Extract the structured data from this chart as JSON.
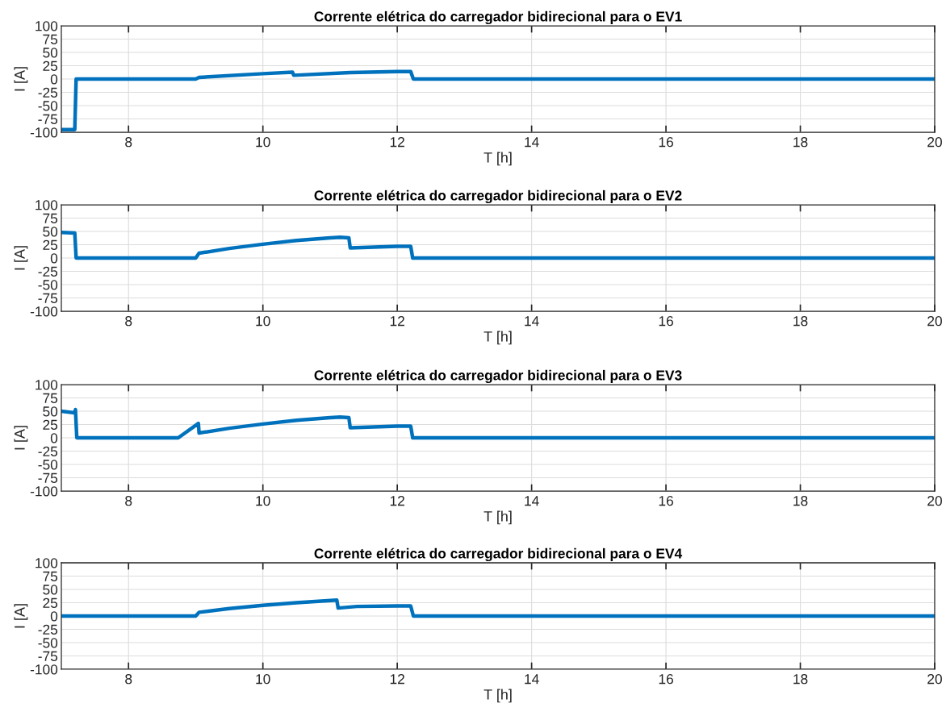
{
  "chart_data": [
    {
      "type": "line",
      "title": "Corrente elétrica do carregador bidirecional para o EV1",
      "xlabel": "T [h]",
      "ylabel": "I [A]",
      "xlim": [
        7,
        20
      ],
      "ylim": [
        -100,
        100
      ],
      "xticks": [
        8,
        10,
        12,
        14,
        16,
        18,
        20
      ],
      "yticks": [
        -100,
        -75,
        -50,
        -25,
        0,
        25,
        50,
        75,
        100
      ],
      "grid": true,
      "line_style": "solid",
      "marker": "none",
      "series": [
        {
          "color": "#0072bd",
          "x": [
            7,
            7.2,
            7.22,
            9.0,
            9.05,
            10.0,
            10.44,
            10.46,
            11.3,
            12.0,
            12.2,
            12.24,
            20
          ],
          "values": [
            -95,
            -95,
            0,
            0,
            3,
            10,
            13,
            7,
            12,
            14,
            14,
            0,
            0
          ]
        }
      ]
    },
    {
      "type": "line",
      "title": "Corrente elétrica do carregador bidirecional para o EV2",
      "xlabel": "T [h]",
      "ylabel": "I [A]",
      "xlim": [
        7,
        20
      ],
      "ylim": [
        -100,
        100
      ],
      "xticks": [
        8,
        10,
        12,
        14,
        16,
        18,
        20
      ],
      "yticks": [
        -100,
        -75,
        -50,
        -25,
        0,
        25,
        50,
        75,
        100
      ],
      "grid": true,
      "line_style": "solid",
      "marker": "none",
      "series": [
        {
          "color": "#0072bd",
          "x": [
            7,
            7.2,
            7.22,
            9.0,
            9.05,
            9.5,
            10.0,
            10.5,
            11.0,
            11.15,
            11.28,
            11.3,
            12.0,
            12.2,
            12.23,
            20
          ],
          "values": [
            48,
            47,
            0,
            0,
            9,
            18,
            26,
            33,
            38,
            39,
            38,
            19,
            22,
            22,
            0,
            0
          ]
        }
      ]
    },
    {
      "type": "line",
      "title": "Corrente elétrica do carregador bidirecional para o EV3",
      "xlabel": "T [h]",
      "ylabel": "I [A]",
      "xlim": [
        7,
        20
      ],
      "ylim": [
        -100,
        100
      ],
      "xticks": [
        8,
        10,
        12,
        14,
        16,
        18,
        20
      ],
      "yticks": [
        -100,
        -75,
        -50,
        -25,
        0,
        25,
        50,
        75,
        100
      ],
      "grid": true,
      "line_style": "solid",
      "marker": "none",
      "series": [
        {
          "color": "#0072bd",
          "x": [
            7,
            7.2,
            7.21,
            7.23,
            8.74,
            9.04,
            9.05,
            9.5,
            10.0,
            10.5,
            11.0,
            11.15,
            11.28,
            11.3,
            12.0,
            12.2,
            12.23,
            20
          ],
          "values": [
            50,
            47,
            53,
            0,
            0,
            27,
            9,
            18,
            26,
            33,
            38,
            39,
            38,
            19,
            22,
            22,
            0,
            0
          ]
        }
      ]
    },
    {
      "type": "line",
      "title": "Corrente elétrica do carregador bidirecional para o EV4",
      "xlabel": "T [h]",
      "ylabel": "I [A]",
      "xlim": [
        7,
        20
      ],
      "ylim": [
        -100,
        100
      ],
      "xticks": [
        8,
        10,
        12,
        14,
        16,
        18,
        20
      ],
      "yticks": [
        -100,
        -75,
        -50,
        -25,
        0,
        25,
        50,
        75,
        100
      ],
      "grid": true,
      "line_style": "solid",
      "marker": "none",
      "series": [
        {
          "color": "#0072bd",
          "x": [
            7,
            9.0,
            9.05,
            9.5,
            10.0,
            10.5,
            11.1,
            11.12,
            11.4,
            12.0,
            12.2,
            12.24,
            20
          ],
          "values": [
            0,
            0,
            7,
            14,
            20,
            25,
            30,
            15,
            18,
            19,
            19,
            0,
            0
          ]
        }
      ]
    }
  ]
}
